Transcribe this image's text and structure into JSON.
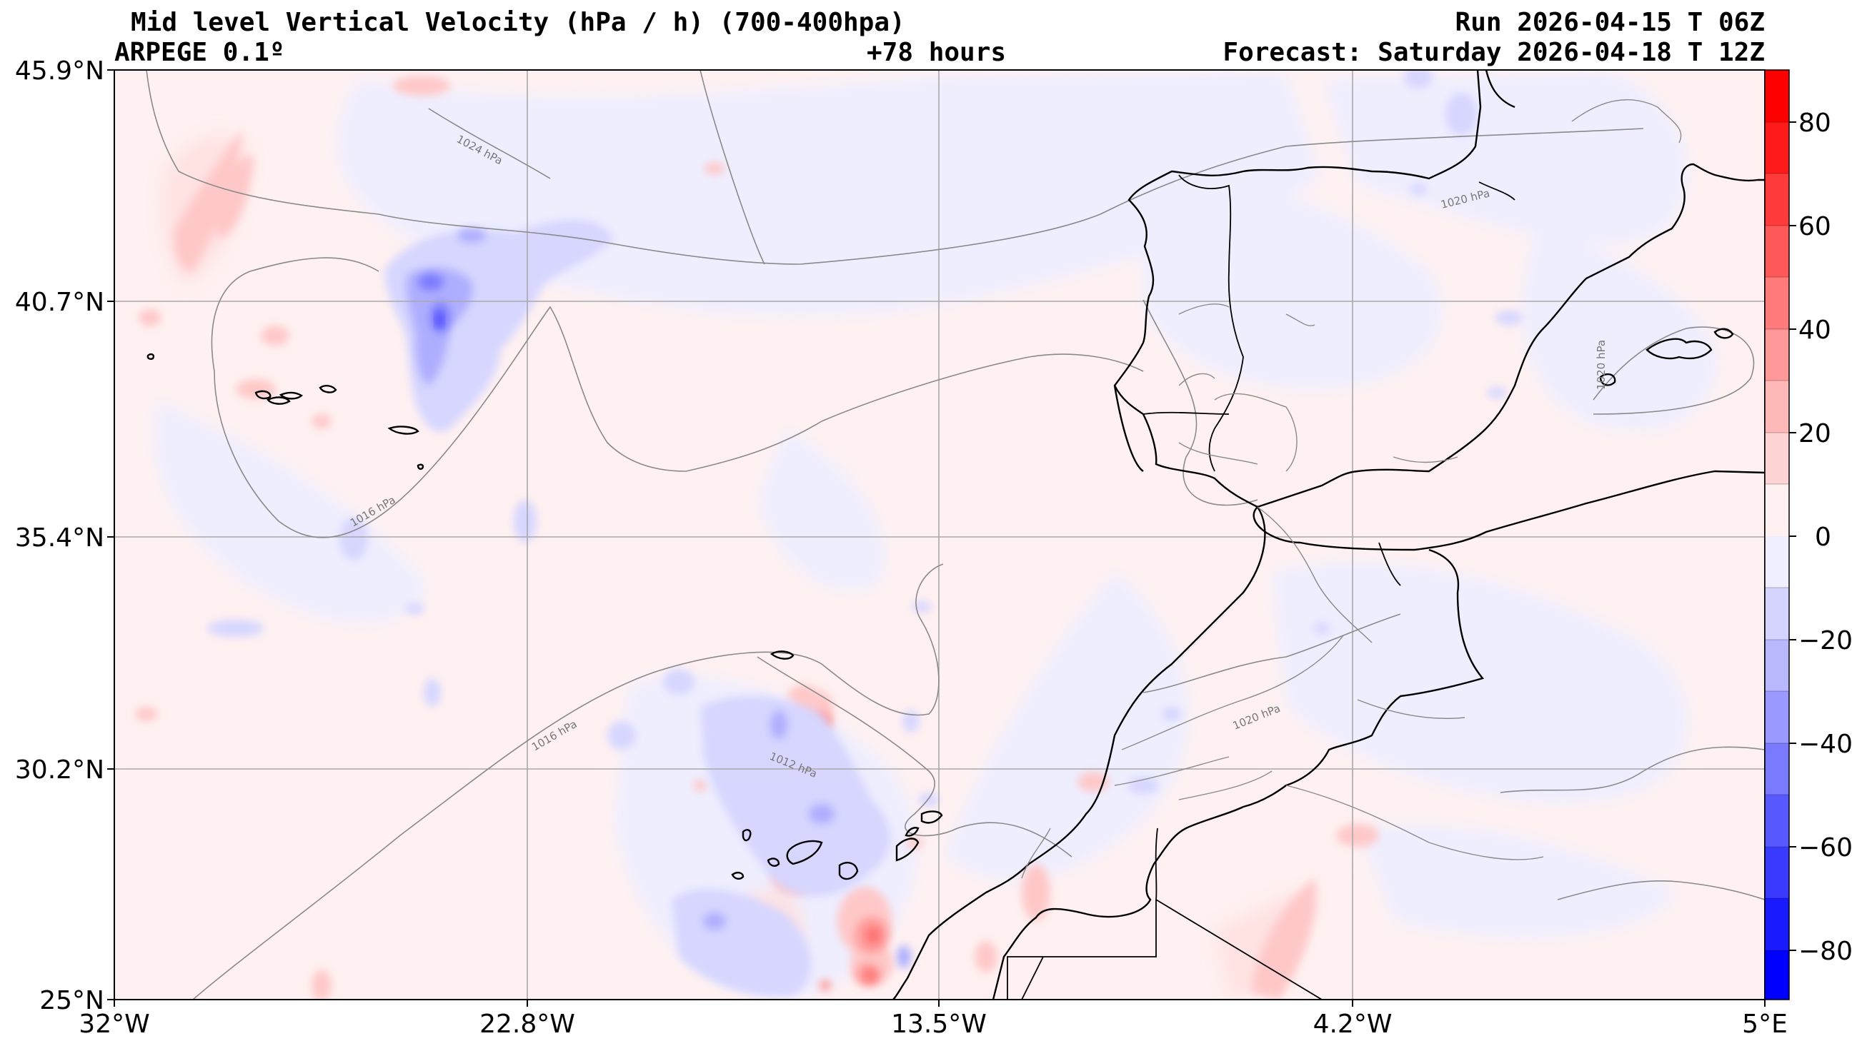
{
  "header": {
    "title": "Mid level Vertical Velocity (hPa / h)  (700-400hpa)",
    "model": "ARPEGE 0.1º",
    "lead_time": "+78 hours",
    "run": "Run 2026-04-15 T 06Z",
    "forecast": "Forecast: Saturday 2026-04-18 T 12Z"
  },
  "map": {
    "lat_labels": [
      "45.9°N",
      "40.7°N",
      "35.4°N",
      "30.2°N",
      "25°N"
    ],
    "lon_labels": [
      "32°W",
      "22.8°W",
      "13.5°W",
      "4.2°W",
      "5°E"
    ],
    "isobar_labels": [
      "1024 hPa",
      "1020 hPa",
      "1016 hPa",
      "1016 hPa",
      "1012 hPa",
      "1020 hPa",
      "1020 hPa"
    ],
    "colors": {
      "positive": "#ff0000",
      "negative": "#0000ff",
      "coast": "#000000",
      "isobar": "#808080"
    }
  },
  "colorbar": {
    "tick_labels": [
      "80",
      "60",
      "40",
      "20",
      "0",
      "−20",
      "−40",
      "−60",
      "−80"
    ],
    "range": [
      -90,
      90
    ]
  }
}
